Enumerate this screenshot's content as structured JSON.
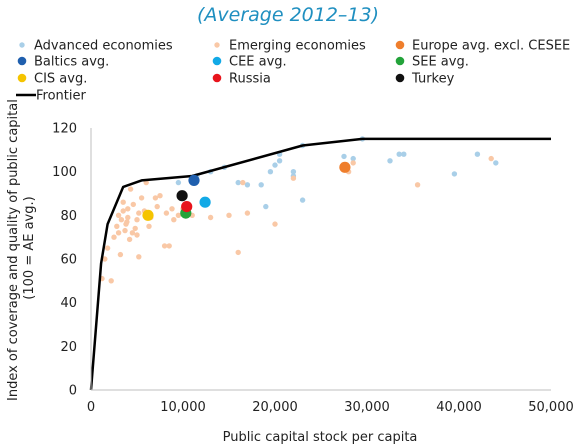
{
  "chart_data": {
    "type": "scatter",
    "subtitle": "(Average 2012–13)",
    "xlabel": "Public capital stock per capita",
    "ylabel_lines": [
      "Index of coverage and quality of public capital",
      "(100 = AE avg.)"
    ],
    "xlim": [
      0,
      50000
    ],
    "ylim": [
      0,
      120
    ],
    "x_ticks": [
      0,
      10000,
      20000,
      30000,
      40000,
      50000
    ],
    "x_tick_labels": [
      "0",
      "10,000",
      "20,000",
      "30,000",
      "40,000",
      "50,000"
    ],
    "y_ticks": [
      0,
      20,
      40,
      60,
      80,
      100,
      120
    ],
    "y_tick_labels": [
      "0",
      "20",
      "40",
      "60",
      "80",
      "100",
      "120"
    ],
    "grid": false,
    "legend_position": "top",
    "legend": [
      {
        "label": "Advanced economies",
        "color": "#a9cfe8",
        "kind": "small-dot"
      },
      {
        "label": "Emerging economies",
        "color": "#f9c8a6",
        "kind": "small-dot"
      },
      {
        "label": "Europe avg. excl. CESEE",
        "color": "#ef7e2c",
        "kind": "dot"
      },
      {
        "label": "Baltics avg.",
        "color": "#1f5fae",
        "kind": "dot"
      },
      {
        "label": "CEE avg.",
        "color": "#12a9e6",
        "kind": "dot"
      },
      {
        "label": "SEE avg.",
        "color": "#23a33a",
        "kind": "dot"
      },
      {
        "label": "CIS avg.",
        "color": "#f5c400",
        "kind": "dot"
      },
      {
        "label": "Russia",
        "color": "#e8141c",
        "kind": "dot"
      },
      {
        "label": "Turkey",
        "color": "#111111",
        "kind": "dot"
      },
      {
        "label": "Frontier",
        "color": "#000000",
        "kind": "line"
      }
    ],
    "series": [
      {
        "name": "Frontier",
        "kind": "line",
        "color": "#000000",
        "x": [
          0,
          1100,
          1800,
          3500,
          5500,
          11000,
          23000,
          29500,
          50000
        ],
        "y": [
          0,
          58,
          76,
          93,
          96,
          98,
          112,
          115,
          115
        ]
      },
      {
        "name": "Advanced economies",
        "kind": "small-dot",
        "color": "#a9cfe8",
        "x": [
          9500,
          11500,
          13000,
          14500,
          16000,
          17000,
          18500,
          19500,
          20000,
          20500,
          20500,
          22000,
          22000,
          23000,
          23000,
          27500,
          28500,
          29500,
          32500,
          33500,
          34000,
          39500,
          42000,
          44000,
          19000
        ],
        "y": [
          95,
          98,
          100,
          102,
          95,
          94,
          94,
          100,
          103,
          105,
          108,
          98,
          100,
          87,
          112,
          107,
          106,
          115,
          105,
          108,
          108,
          99,
          108,
          104,
          84
        ]
      },
      {
        "name": "Emerging economies",
        "kind": "small-dot",
        "color": "#f9c8a6",
        "x": [
          1200,
          1500,
          1800,
          2200,
          2500,
          2800,
          3000,
          3000,
          3200,
          3300,
          3500,
          3500,
          3700,
          3800,
          4000,
          4000,
          4200,
          4300,
          4500,
          4600,
          4800,
          5000,
          5000,
          5200,
          5200,
          5500,
          5800,
          6000,
          6300,
          6500,
          7000,
          7200,
          7500,
          8000,
          8200,
          8500,
          8800,
          9000,
          9500,
          10000,
          11000,
          12500,
          13000,
          15000,
          16000,
          17000,
          20000,
          22000,
          28500,
          35500,
          43500,
          28000,
          16500,
          3900
        ],
        "y": [
          51,
          60,
          65,
          50,
          70,
          75,
          72,
          80,
          62,
          78,
          82,
          86,
          73,
          76,
          79,
          83,
          69,
          92,
          72,
          85,
          74,
          71,
          78,
          81,
          61,
          88,
          82,
          95,
          75,
          79,
          88,
          84,
          89,
          66,
          81,
          66,
          83,
          78,
          80,
          83,
          80,
          87,
          79,
          80,
          63,
          81,
          76,
          97,
          104,
          94,
          106,
          100,
          95,
          77
        ]
      },
      {
        "name": "Europe avg. excl. CESEE",
        "kind": "dot",
        "color": "#ef7e2c",
        "x": [
          27600
        ],
        "y": [
          102
        ]
      },
      {
        "name": "Baltics avg.",
        "kind": "dot",
        "color": "#1f5fae",
        "x": [
          11200
        ],
        "y": [
          96
        ]
      },
      {
        "name": "CEE avg.",
        "kind": "dot",
        "color": "#12a9e6",
        "x": [
          12400
        ],
        "y": [
          86
        ]
      },
      {
        "name": "SEE avg.",
        "kind": "dot",
        "color": "#23a33a",
        "x": [
          10300
        ],
        "y": [
          81
        ]
      },
      {
        "name": "CIS avg.",
        "kind": "dot",
        "color": "#f5c400",
        "x": [
          6200
        ],
        "y": [
          80
        ]
      },
      {
        "name": "Russia",
        "kind": "dot",
        "color": "#e8141c",
        "x": [
          10400
        ],
        "y": [
          84
        ]
      },
      {
        "name": "Turkey",
        "kind": "dot",
        "color": "#111111",
        "x": [
          9900
        ],
        "y": [
          89
        ]
      }
    ]
  }
}
